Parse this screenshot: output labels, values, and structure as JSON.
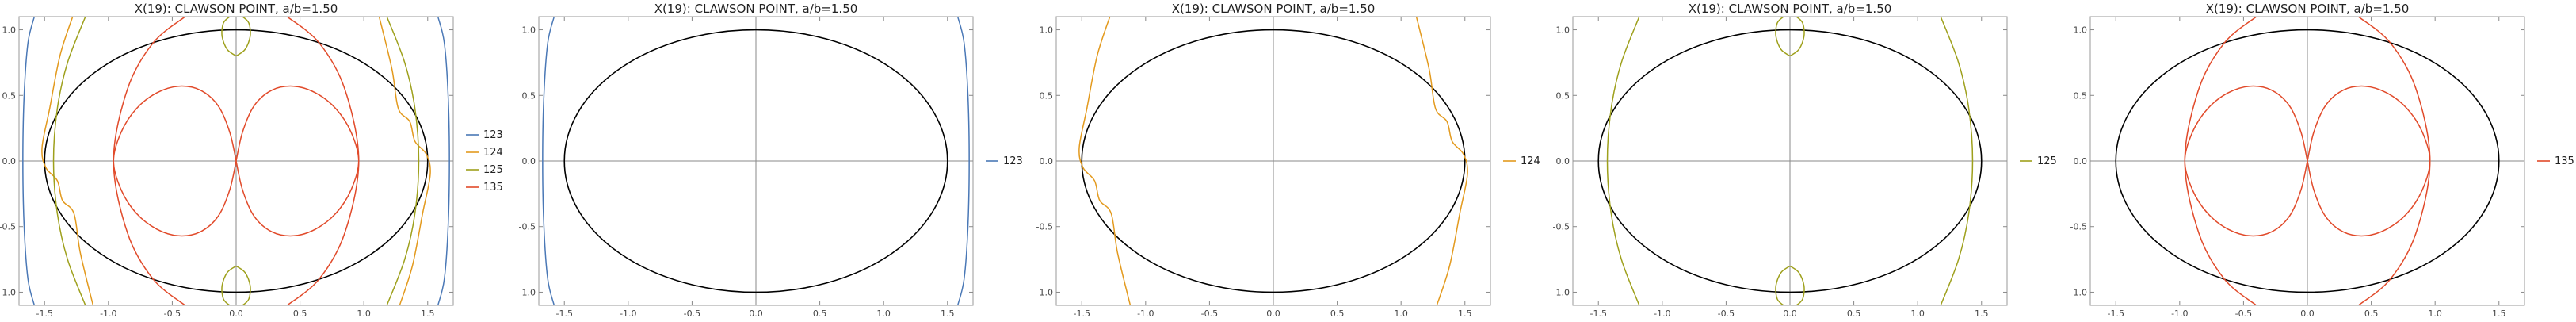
{
  "colors": {
    "123": "#4a78b6",
    "124": "#e39a1e",
    "125": "#9ea01c",
    "135": "#e14a2a",
    "ellipse": "#000000",
    "axes": "#8a8a8a"
  },
  "chart_data": [
    {
      "type": "line",
      "title": "X(19): CLAWSON POINT, a/b=1.50",
      "xlim": [
        -1.7,
        1.7
      ],
      "ylim": [
        -1.1,
        1.1
      ],
      "xticks": [
        -1.5,
        -1.0,
        -0.5,
        0.0,
        0.5,
        1.0,
        1.5
      ],
      "xtick_labels": [
        "-1.5",
        "-1.0",
        "-0.5",
        "0.0",
        "0.5",
        "1.0",
        "1.5"
      ],
      "yticks": [
        -1.0,
        -0.5,
        0.0,
        0.5,
        1.0
      ],
      "ytick_labels": [
        "-1.0",
        "-0.5",
        "0.0",
        "0.5",
        "1.0"
      ],
      "ellipse": {
        "a": 1.5,
        "b": 1.0
      },
      "legend": [
        "123",
        "124",
        "125",
        "135"
      ],
      "legend_position": "right",
      "series": [
        {
          "name": "123",
          "curves": [
            "c123"
          ]
        },
        {
          "name": "124",
          "curves": [
            "c124"
          ]
        },
        {
          "name": "125",
          "curves": [
            "c125"
          ]
        },
        {
          "name": "135",
          "curves": [
            "c135"
          ]
        }
      ]
    },
    {
      "type": "line",
      "title": "X(19): CLAWSON POINT, a/b=1.50",
      "xlim": [
        -1.7,
        1.7
      ],
      "ylim": [
        -1.1,
        1.1
      ],
      "xticks": [
        -1.5,
        -1.0,
        -0.5,
        0.0,
        0.5,
        1.0,
        1.5
      ],
      "xtick_labels": [
        "-1.5",
        "-1.0",
        "-0.5",
        "0.0",
        "0.5",
        "1.0",
        "1.5"
      ],
      "yticks": [
        -1.0,
        -0.5,
        0.0,
        0.5,
        1.0
      ],
      "ytick_labels": [
        "-1.0",
        "-0.5",
        "0.0",
        "0.5",
        "1.0"
      ],
      "ellipse": {
        "a": 1.5,
        "b": 1.0
      },
      "legend": [
        "123"
      ],
      "legend_position": "right",
      "series": [
        {
          "name": "123",
          "curves": [
            "c123"
          ]
        }
      ]
    },
    {
      "type": "line",
      "title": "X(19): CLAWSON POINT, a/b=1.50",
      "xlim": [
        -1.7,
        1.7
      ],
      "ylim": [
        -1.1,
        1.1
      ],
      "xticks": [
        -1.5,
        -1.0,
        -0.5,
        0.0,
        0.5,
        1.0,
        1.5
      ],
      "xtick_labels": [
        "-1.5",
        "-1.0",
        "-0.5",
        "0.0",
        "0.5",
        "1.0",
        "1.5"
      ],
      "yticks": [
        -1.0,
        -0.5,
        0.0,
        0.5,
        1.0
      ],
      "ytick_labels": [
        "-1.0",
        "-0.5",
        "0.0",
        "0.5",
        "1.0"
      ],
      "ellipse": {
        "a": 1.5,
        "b": 1.0
      },
      "legend": [
        "124"
      ],
      "legend_position": "right",
      "series": [
        {
          "name": "124",
          "curves": [
            "c124"
          ]
        }
      ]
    },
    {
      "type": "line",
      "title": "X(19): CLAWSON POINT, a/b=1.50",
      "xlim": [
        -1.7,
        1.7
      ],
      "ylim": [
        -1.1,
        1.1
      ],
      "xticks": [
        -1.5,
        -1.0,
        -0.5,
        0.0,
        0.5,
        1.0,
        1.5
      ],
      "xtick_labels": [
        "-1.5",
        "-1.0",
        "-0.5",
        "0.0",
        "0.5",
        "1.0",
        "1.5"
      ],
      "yticks": [
        -1.0,
        -0.5,
        0.0,
        0.5,
        1.0
      ],
      "ytick_labels": [
        "-1.0",
        "-0.5",
        "0.0",
        "0.5",
        "1.0"
      ],
      "ellipse": {
        "a": 1.5,
        "b": 1.0
      },
      "legend": [
        "125"
      ],
      "legend_position": "right",
      "series": [
        {
          "name": "125",
          "curves": [
            "c125"
          ]
        }
      ]
    },
    {
      "type": "line",
      "title": "X(19): CLAWSON POINT, a/b=1.50",
      "xlim": [
        -1.7,
        1.7
      ],
      "ylim": [
        -1.1,
        1.1
      ],
      "xticks": [
        -1.5,
        -1.0,
        -0.5,
        0.0,
        0.5,
        1.0,
        1.5
      ],
      "xtick_labels": [
        "-1.5",
        "-1.0",
        "-0.5",
        "0.0",
        "0.5",
        "1.0",
        "1.5"
      ],
      "yticks": [
        -1.0,
        -0.5,
        0.0,
        0.5,
        1.0
      ],
      "ytick_labels": [
        "-1.0",
        "-0.5",
        "0.0",
        "0.5",
        "1.0"
      ],
      "ellipse": {
        "a": 1.5,
        "b": 1.0
      },
      "legend": [
        "135"
      ],
      "legend_position": "right",
      "series": [
        {
          "name": "135",
          "curves": [
            "c135"
          ]
        }
      ]
    }
  ],
  "curves": {
    "c123": [
      [
        [
          -1.58,
          1.1
        ],
        [
          -1.63,
          0.9
        ],
        [
          -1.66,
          0.5
        ],
        [
          -1.67,
          0.0
        ],
        [
          -1.66,
          -0.5
        ],
        [
          -1.63,
          -0.9
        ],
        [
          -1.58,
          -1.1
        ]
      ],
      [
        [
          1.58,
          1.1
        ],
        [
          1.63,
          0.9
        ],
        [
          1.66,
          0.5
        ],
        [
          1.67,
          0.0
        ],
        [
          1.66,
          -0.5
        ],
        [
          1.63,
          -0.9
        ],
        [
          1.58,
          -1.1
        ]
      ]
    ],
    "c124": [
      [
        [
          -1.28,
          1.1
        ],
        [
          -1.38,
          0.8
        ],
        [
          -1.46,
          0.4
        ],
        [
          -1.52,
          0.1
        ],
        [
          -1.49,
          -0.05
        ],
        [
          -1.4,
          -0.15
        ],
        [
          -1.36,
          -0.3
        ],
        [
          -1.27,
          -0.4
        ],
        [
          -1.22,
          -0.7
        ],
        [
          -1.12,
          -1.1
        ]
      ],
      [
        [
          1.12,
          1.1
        ],
        [
          1.22,
          0.7
        ],
        [
          1.27,
          0.4
        ],
        [
          1.36,
          0.3
        ],
        [
          1.4,
          0.15
        ],
        [
          1.49,
          0.05
        ],
        [
          1.52,
          -0.1
        ],
        [
          1.46,
          -0.4
        ],
        [
          1.38,
          -0.8
        ],
        [
          1.28,
          -1.1
        ]
      ]
    ],
    "c125": [
      [
        [
          -1.18,
          1.1
        ],
        [
          -1.32,
          0.75
        ],
        [
          -1.4,
          0.4
        ],
        [
          -1.43,
          0.0
        ],
        [
          -1.4,
          -0.4
        ],
        [
          -1.32,
          -0.75
        ],
        [
          -1.18,
          -1.1
        ]
      ],
      [
        [
          1.18,
          1.1
        ],
        [
          1.32,
          0.75
        ],
        [
          1.4,
          0.4
        ],
        [
          1.43,
          0.0
        ],
        [
          1.4,
          -0.4
        ],
        [
          1.32,
          -0.75
        ],
        [
          1.18,
          -1.1
        ]
      ],
      [
        [
          0.0,
          0.8
        ],
        [
          0.07,
          0.85
        ],
        [
          0.11,
          0.95
        ],
        [
          0.1,
          1.05
        ],
        [
          0.05,
          1.1
        ],
        [
          0.0,
          1.12
        ],
        [
          -0.05,
          1.1
        ],
        [
          -0.1,
          1.05
        ],
        [
          -0.11,
          0.95
        ],
        [
          -0.07,
          0.85
        ],
        [
          0.0,
          0.8
        ]
      ],
      [
        [
          0.0,
          -0.8
        ],
        [
          0.07,
          -0.85
        ],
        [
          0.11,
          -0.95
        ],
        [
          0.1,
          -1.05
        ],
        [
          0.05,
          -1.1
        ],
        [
          0.0,
          -1.12
        ],
        [
          -0.05,
          -1.1
        ],
        [
          -0.1,
          -1.05
        ],
        [
          -0.11,
          -0.95
        ],
        [
          -0.07,
          -0.85
        ],
        [
          0.0,
          -0.8
        ]
      ]
    ],
    "c135": [
      [
        [
          0.0,
          0.0
        ],
        [
          0.05,
          0.22
        ],
        [
          0.14,
          0.42
        ],
        [
          0.28,
          0.54
        ],
        [
          0.45,
          0.57
        ],
        [
          0.62,
          0.52
        ],
        [
          0.78,
          0.4
        ],
        [
          0.9,
          0.22
        ],
        [
          0.96,
          0.0
        ],
        [
          0.9,
          -0.22
        ],
        [
          0.78,
          -0.4
        ],
        [
          0.62,
          -0.52
        ],
        [
          0.45,
          -0.57
        ],
        [
          0.28,
          -0.54
        ],
        [
          0.14,
          -0.42
        ],
        [
          0.05,
          -0.22
        ],
        [
          0.0,
          0.0
        ]
      ],
      [
        [
          0.0,
          0.0
        ],
        [
          -0.05,
          0.22
        ],
        [
          -0.14,
          0.42
        ],
        [
          -0.28,
          0.54
        ],
        [
          -0.45,
          0.57
        ],
        [
          -0.62,
          0.52
        ],
        [
          -0.78,
          0.4
        ],
        [
          -0.9,
          0.22
        ],
        [
          -0.96,
          0.0
        ],
        [
          -0.9,
          -0.22
        ],
        [
          -0.78,
          -0.4
        ],
        [
          -0.62,
          -0.52
        ],
        [
          -0.45,
          -0.57
        ],
        [
          -0.28,
          -0.54
        ],
        [
          -0.14,
          -0.42
        ],
        [
          -0.05,
          -0.22
        ],
        [
          0.0,
          0.0
        ]
      ],
      [
        [
          -0.4,
          1.1
        ],
        [
          -0.65,
          0.9
        ],
        [
          -0.85,
          0.55
        ],
        [
          -0.96,
          0.0
        ],
        [
          -0.85,
          -0.55
        ],
        [
          -0.65,
          -0.9
        ],
        [
          -0.4,
          -1.1
        ]
      ],
      [
        [
          0.4,
          1.1
        ],
        [
          0.65,
          0.9
        ],
        [
          0.85,
          0.55
        ],
        [
          0.96,
          0.0
        ],
        [
          0.85,
          -0.55
        ],
        [
          0.65,
          -0.9
        ],
        [
          0.4,
          -1.1
        ]
      ]
    ]
  }
}
